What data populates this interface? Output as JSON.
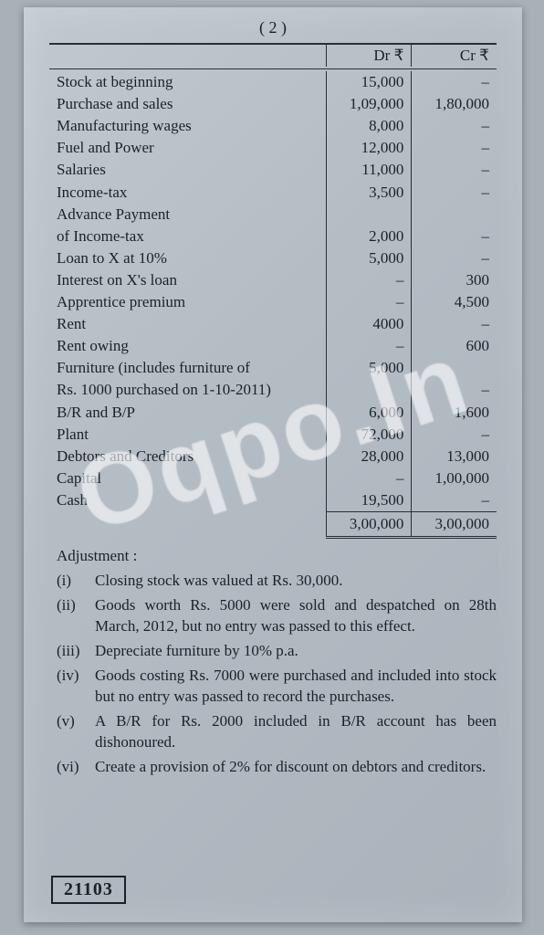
{
  "page_number": "( 2 )",
  "headers": {
    "dr": "Dr ₹",
    "cr": "Cr ₹"
  },
  "rows": [
    {
      "desc": "Stock at beginning",
      "dr": "15,000",
      "cr": "–"
    },
    {
      "desc": "Purchase and sales",
      "dr": "1,09,000",
      "cr": "1,80,000"
    },
    {
      "desc": "Manufacturing wages",
      "dr": "8,000",
      "cr": "–"
    },
    {
      "desc": "Fuel and Power",
      "dr": "12,000",
      "cr": "–"
    },
    {
      "desc": "Salaries",
      "dr": "11,000",
      "cr": "–"
    },
    {
      "desc": "Income-tax",
      "dr": "3,500",
      "cr": "–"
    },
    {
      "desc": "Advance Payment",
      "dr": "",
      "cr": ""
    },
    {
      "desc": "of Income-tax",
      "dr": "2,000",
      "cr": "–"
    },
    {
      "desc": "Loan to X at 10%",
      "dr": "5,000",
      "cr": "–"
    },
    {
      "desc": "Interest on X's loan",
      "dr": "–",
      "cr": "300"
    },
    {
      "desc": "Apprentice premium",
      "dr": "–",
      "cr": "4,500"
    },
    {
      "desc": "Rent",
      "dr": "4000",
      "cr": "–"
    },
    {
      "desc": "Rent owing",
      "dr": "–",
      "cr": "600"
    },
    {
      "desc": "Furniture (includes furniture of",
      "dr": "5,000",
      "cr": ""
    },
    {
      "desc": "Rs. 1000 purchased on 1-10-2011)",
      "dr": "",
      "cr": "–"
    },
    {
      "desc": "B/R and B/P",
      "dr": "6,000",
      "cr": "1,600"
    },
    {
      "desc": "Plant",
      "dr": "72,000",
      "cr": "–"
    },
    {
      "desc": "Debtors and Creditors",
      "dr": "28,000",
      "cr": "13,000"
    },
    {
      "desc": "Capital",
      "dr": "–",
      "cr": "1,00,000"
    },
    {
      "desc": "Cash",
      "dr": "19,500",
      "cr": "–"
    }
  ],
  "totals": {
    "dr": "3,00,000",
    "cr": "3,00,000"
  },
  "adjust_heading": "Adjustment :",
  "adjustments": [
    {
      "n": "(i)",
      "t": "Closing stock was valued at Rs. 30,000."
    },
    {
      "n": "(ii)",
      "t": "Goods worth Rs. 5000 were sold and despatched on 28th March, 2012, but no entry was passed to this effect."
    },
    {
      "n": "(iii)",
      "t": "Depreciate furniture by 10% p.a."
    },
    {
      "n": "(iv)",
      "t": "Goods costing Rs. 7000 were purchased and included into stock but no entry was passed to record the purchases."
    },
    {
      "n": "(v)",
      "t": "A B/R for Rs. 2000 included in B/R account has been dishonoured."
    },
    {
      "n": "(vi)",
      "t": "Create a provision of 2% for discount on debtors and creditors."
    }
  ],
  "paper_code": "21103",
  "watermark": "Oqpo.In"
}
